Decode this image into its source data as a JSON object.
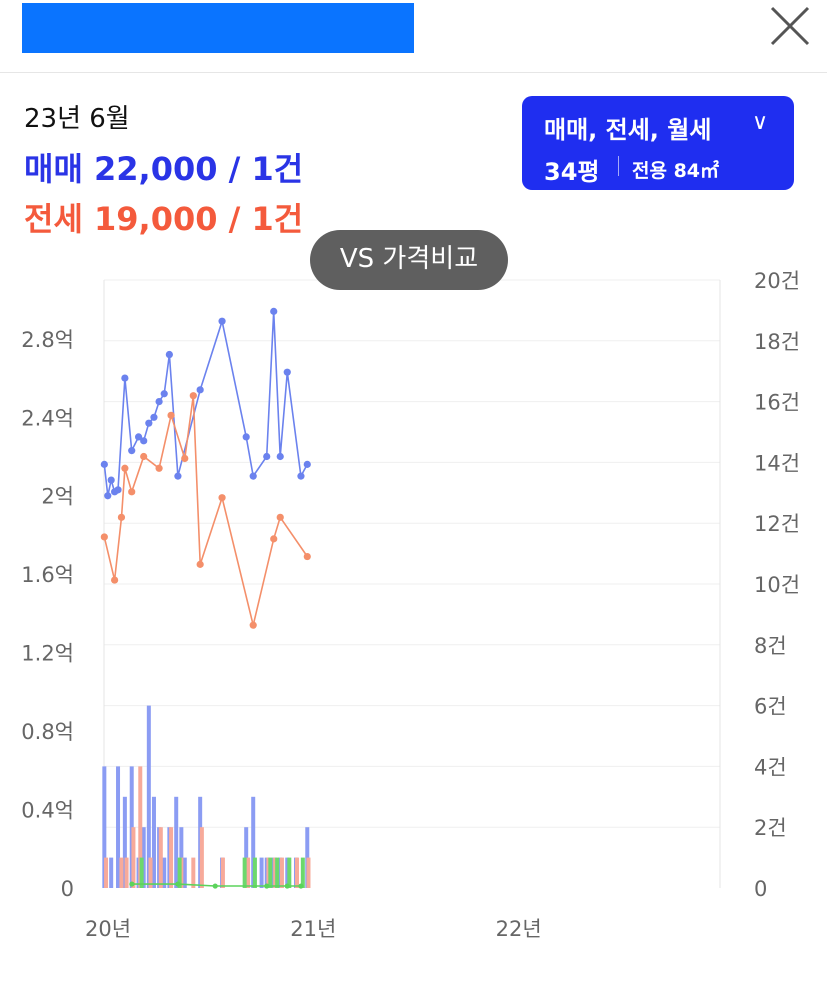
{
  "header": {
    "brand_color": "#0a74ff",
    "close_icon": "close-icon"
  },
  "summary": {
    "date": "23년 6월",
    "sale_line": "매매 22,000 / 1건",
    "jeonse_line": "전세 19,000 / 1건",
    "sale_color": "#2a34e6",
    "jeonse_color": "#f45a3c"
  },
  "filter": {
    "types": "매매, 전세, 월세",
    "chevron": "∨",
    "pyeong": "34평",
    "area": "전용 84㎡",
    "bg_color": "#1f2ef0"
  },
  "vs_button": {
    "label": "VS 가격비교"
  },
  "chart_data": {
    "type": "line",
    "title": "",
    "xlabel": "",
    "ylabel": "",
    "x_range": [
      "2020-01",
      "2022-12"
    ],
    "x_ticks": [
      "20년",
      "21년",
      "22년"
    ],
    "y_left_range": [
      0,
      3.1
    ],
    "y_left_ticks": [
      "0",
      "0.4억",
      "0.8억",
      "1.2억",
      "1.6억",
      "2억",
      "2.4억",
      "2.8억"
    ],
    "y_left_tick_values": [
      0,
      0.4,
      0.8,
      1.2,
      1.6,
      2.0,
      2.4,
      2.8
    ],
    "y_right_range": [
      0,
      20
    ],
    "y_right_ticks": [
      "0",
      "2건",
      "4건",
      "6건",
      "8건",
      "10건",
      "12건",
      "14건",
      "16건",
      "18건",
      "20건"
    ],
    "y_right_tick_values": [
      0,
      2,
      4,
      6,
      8,
      10,
      12,
      14,
      16,
      18,
      20
    ],
    "grid": true,
    "series": [
      {
        "role": "sale_price",
        "color": "#6b82ee",
        "points": [
          [
            0.02,
            2.16
          ],
          [
            0.22,
            2.0
          ],
          [
            0.42,
            2.08
          ],
          [
            0.62,
            2.02
          ],
          [
            0.82,
            2.03
          ],
          [
            1.22,
            2.6
          ],
          [
            1.62,
            2.23
          ],
          [
            2.02,
            2.3
          ],
          [
            2.32,
            2.28
          ],
          [
            2.62,
            2.37
          ],
          [
            2.92,
            2.4
          ],
          [
            3.22,
            2.48
          ],
          [
            3.52,
            2.52
          ],
          [
            3.82,
            2.72
          ],
          [
            4.32,
            2.1
          ],
          [
            5.62,
            2.54
          ],
          [
            6.9,
            2.89
          ],
          [
            8.31,
            2.3
          ],
          [
            8.72,
            2.1
          ],
          [
            9.51,
            2.2
          ],
          [
            9.92,
            2.94
          ],
          [
            10.3,
            2.2
          ],
          [
            10.71,
            2.63
          ],
          [
            11.51,
            2.1
          ],
          [
            11.88,
            2.16
          ]
        ]
      },
      {
        "role": "jeonse_price",
        "color": "#f48f6a",
        "points": [
          [
            0.02,
            1.79
          ],
          [
            0.62,
            1.57
          ],
          [
            1.02,
            1.89
          ],
          [
            1.22,
            2.14
          ],
          [
            1.62,
            2.02
          ],
          [
            2.32,
            2.2
          ],
          [
            3.22,
            2.14
          ],
          [
            3.92,
            2.41
          ],
          [
            4.72,
            2.19
          ],
          [
            5.22,
            2.51
          ],
          [
            5.62,
            1.65
          ],
          [
            6.9,
            1.99
          ],
          [
            8.72,
            1.34
          ],
          [
            9.92,
            1.78
          ],
          [
            10.3,
            1.89
          ],
          [
            11.88,
            1.69
          ]
        ]
      },
      {
        "role": "monthly_rent",
        "color": "#5bd35b",
        "points": [
          [
            1.63,
            0.02
          ],
          [
            4.32,
            0.02
          ],
          [
            6.5,
            0.01
          ],
          [
            9.51,
            0.01
          ],
          [
            10.71,
            0.01
          ],
          [
            11.51,
            0.01
          ]
        ]
      }
    ],
    "volume_bars": {
      "sale": {
        "color": "#8b9cf3",
        "bars": [
          [
            0.02,
            4
          ],
          [
            0.42,
            1
          ],
          [
            0.82,
            4
          ],
          [
            1.22,
            3
          ],
          [
            1.62,
            4
          ],
          [
            2.02,
            1
          ],
          [
            2.32,
            2
          ],
          [
            2.62,
            6
          ],
          [
            2.92,
            3
          ],
          [
            3.22,
            2
          ],
          [
            3.52,
            1
          ],
          [
            3.82,
            2
          ],
          [
            4.22,
            3
          ],
          [
            4.52,
            2
          ],
          [
            4.72,
            1
          ],
          [
            5.62,
            3
          ],
          [
            6.9,
            1
          ],
          [
            8.31,
            2
          ],
          [
            8.72,
            3
          ],
          [
            9.21,
            1
          ],
          [
            9.51,
            1
          ],
          [
            9.92,
            1
          ],
          [
            10.3,
            1
          ],
          [
            10.71,
            1
          ],
          [
            11.22,
            1
          ],
          [
            11.88,
            2
          ]
        ]
      },
      "jeonse": {
        "color": "#f7aa9a",
        "bars": [
          [
            0.12,
            1
          ],
          [
            1.02,
            1
          ],
          [
            1.32,
            1
          ],
          [
            1.72,
            2
          ],
          [
            2.12,
            4
          ],
          [
            2.72,
            1
          ],
          [
            3.32,
            2
          ],
          [
            3.92,
            2
          ],
          [
            4.52,
            1
          ],
          [
            5.22,
            1
          ],
          [
            5.72,
            2
          ],
          [
            6.95,
            1
          ],
          [
            8.42,
            1
          ],
          [
            9.61,
            1
          ],
          [
            10.0,
            1
          ],
          [
            10.4,
            1
          ],
          [
            11.28,
            1
          ],
          [
            11.95,
            1
          ]
        ]
      },
      "rent": {
        "color": "#6cd86c",
        "bars": [
          [
            2.2,
            1
          ],
          [
            4.42,
            1
          ],
          [
            8.22,
            1
          ],
          [
            8.82,
            1
          ],
          [
            9.72,
            1
          ],
          [
            10.12,
            1
          ],
          [
            10.83,
            1
          ],
          [
            11.62,
            1
          ]
        ]
      }
    }
  }
}
